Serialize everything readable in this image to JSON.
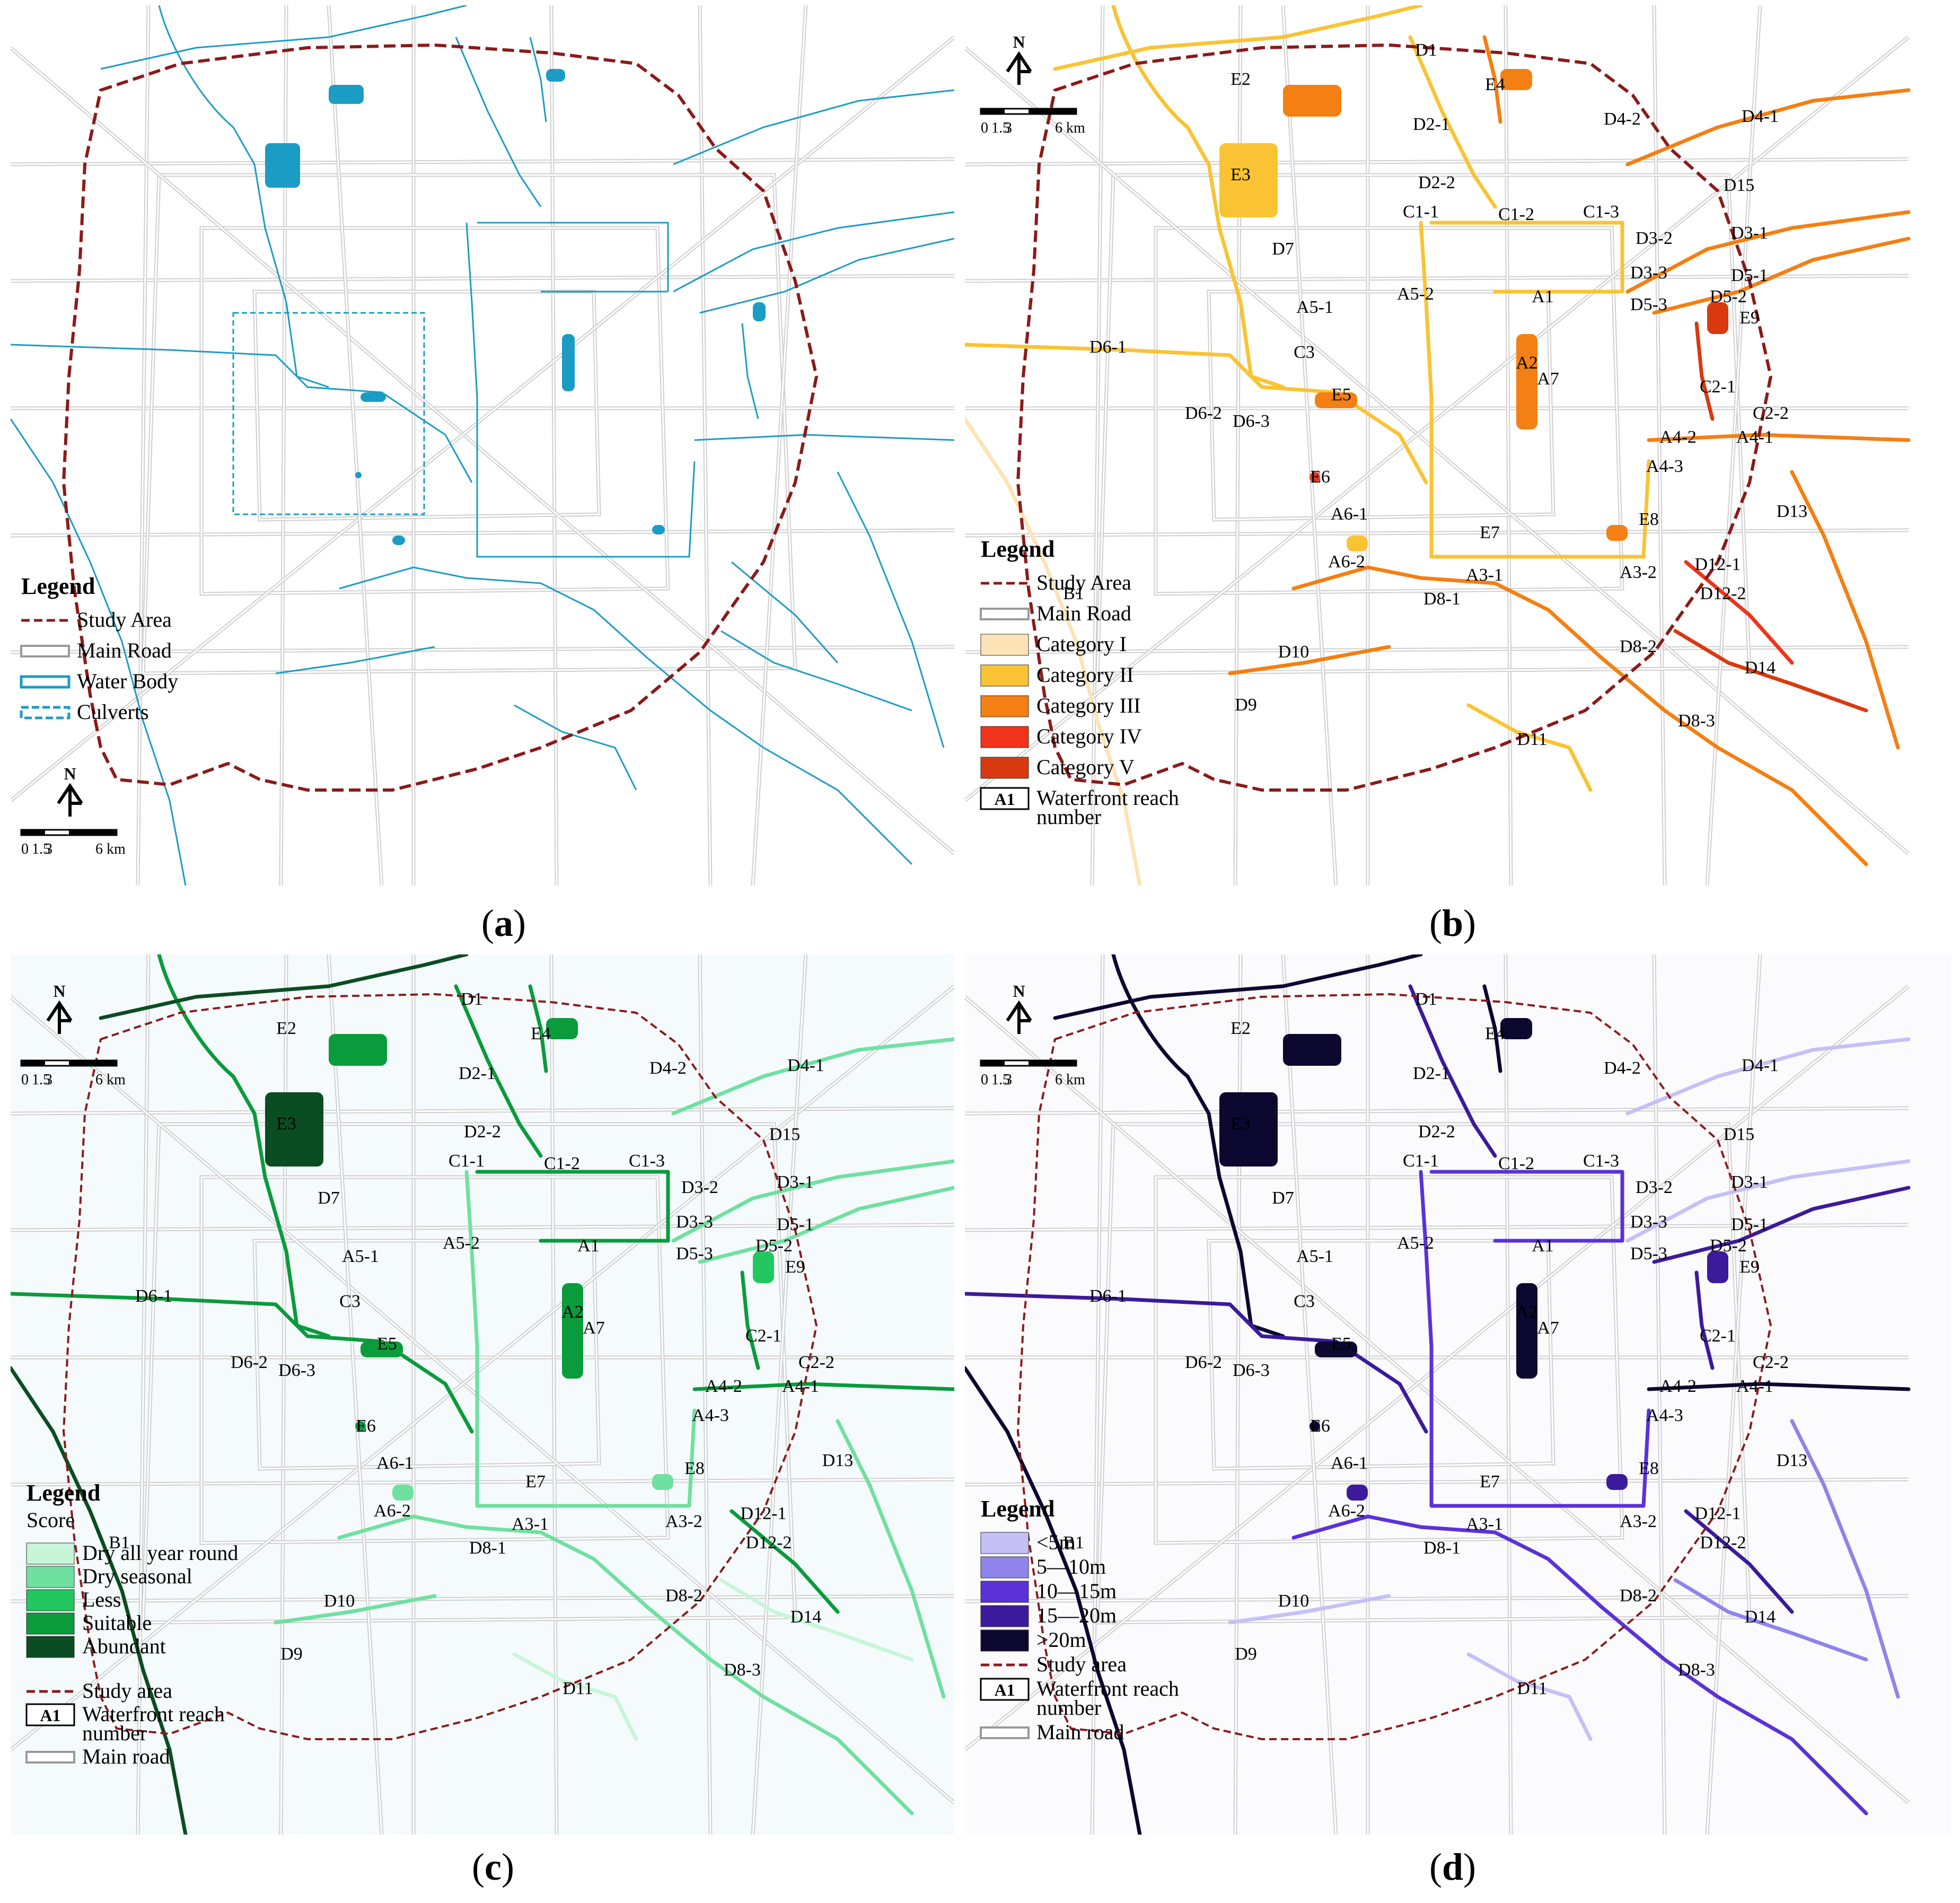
{
  "figure": {
    "panels": [
      {
        "id": "a",
        "caption": "a",
        "legend": {
          "title": "Legend",
          "items": [
            {
              "label": "Study Area",
              "style": "dashed-red",
              "color": "#8b1a1a"
            },
            {
              "label": "Main Road",
              "style": "double-gray",
              "color": "#999999"
            },
            {
              "label": "Water Body",
              "style": "double-blue",
              "color": "#1b9cc4"
            },
            {
              "label": "Culverts",
              "style": "dashed-blue",
              "color": "#1b9cc4"
            }
          ]
        },
        "north": "N",
        "scale": {
          "ticks": [
            "0",
            "1.5",
            "3",
            "6 km"
          ]
        },
        "labels": []
      },
      {
        "id": "b",
        "caption": "b",
        "legend": {
          "title": "Legend",
          "items": [
            {
              "label": "Study Area",
              "style": "dashed-red",
              "color": "#8b1a1a"
            },
            {
              "label": "Main Road",
              "style": "double-gray",
              "color": "#999999"
            },
            {
              "label": "Category I",
              "style": "swatch",
              "color": "#fde3b5"
            },
            {
              "label": "Category II",
              "style": "swatch",
              "color": "#f9c333"
            },
            {
              "label": "Category III",
              "style": "swatch",
              "color": "#f47f12"
            },
            {
              "label": "Category IV",
              "style": "swatch",
              "color": "#f0331a"
            },
            {
              "label": "Category V",
              "style": "swatch",
              "color": "#d9390f"
            },
            {
              "label": "Waterfront reach number",
              "style": "box",
              "box_text": "A1",
              "label_lines": [
                "Waterfront reach",
                "number"
              ]
            }
          ]
        },
        "north": "N",
        "scale": {
          "ticks": [
            "0",
            "1.5",
            "3",
            "6 km"
          ]
        },
        "labels": [
          "D1",
          "E2",
          "E4",
          "D2-1",
          "D4-2",
          "D4-1",
          "E3",
          "D2-2",
          "D15",
          "C1-1",
          "C1-2",
          "C1-3",
          "D3-2",
          "D3-1",
          "D7",
          "D3-3",
          "D5-1",
          "A5-1",
          "A5-2",
          "A1",
          "D5-3",
          "D5-2",
          "E9",
          "D6-1",
          "C3",
          "A2",
          "A7",
          "C2-1",
          "E5",
          "D6-2",
          "D6-3",
          "C2-2",
          "A4-2",
          "A4-1",
          "E6",
          "A4-3",
          "A6-1",
          "E8",
          "D13",
          "E7",
          "A6-2",
          "A3-1",
          "A3-2",
          "D12-1",
          "B1",
          "D8-1",
          "D12-2",
          "D10",
          "D8-2",
          "D14",
          "D9",
          "D8-3",
          "D11"
        ]
      },
      {
        "id": "c",
        "caption": "c",
        "legend": {
          "title": "Legend",
          "subtitle": "Score",
          "items": [
            {
              "label": "Dry all year round",
              "style": "swatch",
              "color": "#c8f5d8"
            },
            {
              "label": "Dry seasonal",
              "style": "swatch",
              "color": "#6fe0a0"
            },
            {
              "label": "Less",
              "style": "swatch",
              "color": "#22c760"
            },
            {
              "label": "Suitable",
              "style": "swatch",
              "color": "#0a9b3c"
            },
            {
              "label": "Abundant",
              "style": "swatch",
              "color": "#0b4d22"
            },
            {
              "label": "Study area",
              "style": "dashed-red",
              "color": "#8b1a1a"
            },
            {
              "label": "Waterfront reach number",
              "style": "box",
              "box_text": "A1",
              "label_lines": [
                "Waterfront reach",
                "number"
              ]
            },
            {
              "label": "Main road",
              "style": "double-gray",
              "color": "#999999"
            }
          ]
        },
        "north": "N",
        "scale": {
          "ticks": [
            "0",
            "1.5",
            "3",
            "6 km"
          ]
        },
        "labels": [
          "D1",
          "E4",
          "E2",
          "D2-1",
          "D4-2",
          "D4-1",
          "E3",
          "D2-2",
          "D15",
          "C1-1",
          "C1-3",
          "C1-2",
          "D3-1",
          "D7",
          "D3-2",
          "D3-3",
          "D5-2",
          "D5-1",
          "A5-2",
          "A1",
          "D5-3",
          "E9",
          "A5-1",
          "D6-1",
          "A2",
          "D6-2",
          "C3",
          "A7",
          "C2-1",
          "E5",
          "C2-2",
          "D6-3",
          "A4-2",
          "A4-1",
          "E6",
          "A4-3",
          "A6-1",
          "D13",
          "E7",
          "E8",
          "A6-2",
          "A3-1",
          "A3-2",
          "D12-1",
          "D8-1",
          "D12-2",
          "B1",
          "D8-2",
          "D10",
          "D14",
          "D9",
          "D8-3",
          "D11"
        ]
      },
      {
        "id": "d",
        "caption": "d",
        "legend": {
          "title": "Legend",
          "items": [
            {
              "label": "<5m",
              "style": "swatch",
              "color": "#c5c0f5"
            },
            {
              "label": "5—10m",
              "style": "swatch",
              "color": "#8f84ea"
            },
            {
              "label": "10—15m",
              "style": "swatch",
              "color": "#5a32d8"
            },
            {
              "label": "15—20m",
              "style": "swatch",
              "color": "#3b1a9c"
            },
            {
              "label": ">20m",
              "style": "swatch",
              "color": "#0c0830"
            },
            {
              "label": "Study area",
              "style": "dashed-red",
              "color": "#8b1a1a"
            },
            {
              "label": "Waterfront reach number",
              "style": "box",
              "box_text": "A1",
              "label_lines": [
                "Waterfront reach",
                "number"
              ]
            },
            {
              "label": "Main road",
              "style": "double-gray",
              "color": "#999999"
            }
          ]
        },
        "north": "N",
        "scale": {
          "ticks": [
            "0",
            "1.5",
            "3",
            "6 km"
          ]
        },
        "labels": [
          "D1",
          "E4",
          "E2",
          "D2-1",
          "D4-2",
          "D4-1",
          "E3",
          "D2-2",
          "D15",
          "C1-1",
          "C1-2",
          "C1-3",
          "D3-2",
          "D3-1",
          "D7",
          "D3-3",
          "D5-1",
          "A5-1",
          "A5-2",
          "A1",
          "D5-3",
          "D5-2",
          "E9",
          "D6-1",
          "C3",
          "A2",
          "A7",
          "D6-2",
          "C2-1",
          "E5",
          "C2-2",
          "D6-3",
          "A4-2",
          "A4-1",
          "E6",
          "A4-3",
          "A6-1",
          "D13",
          "E7",
          "E8",
          "A6-2",
          "A3-1",
          "A3-2",
          "D12-1",
          "D8-1",
          "D12-2",
          "B1",
          "D8-2",
          "D10",
          "D14",
          "D9",
          "D8-3",
          "D11"
        ]
      }
    ]
  }
}
